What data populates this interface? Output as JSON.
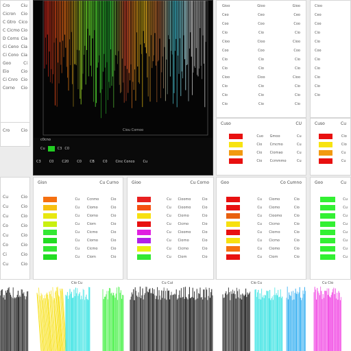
{
  "sidebar_left": {
    "rows": [
      {
        "label": "Cro",
        "value": "Ciu"
      },
      {
        "label": "Cicron",
        "value": "Cio"
      },
      {
        "label": "C Gtro",
        "value": "Cico"
      },
      {
        "label": "C Cicmo",
        "value": "Cio"
      },
      {
        "label": "D Corns",
        "value": "Cia"
      },
      {
        "label": "Ci Ceno",
        "value": "Cia"
      },
      {
        "label": "Ci Cono",
        "value": "Cia"
      },
      {
        "label": "Goo",
        "value": "Ci"
      },
      {
        "label": "Eio",
        "value": "Cio"
      },
      {
        "label": "Ci Cnro",
        "value": "Cio"
      },
      {
        "label": "Corno",
        "value": "Cio"
      }
    ],
    "footer": {
      "label": "Cro",
      "value": "Cio"
    }
  },
  "spectrum_viewer": {
    "status_text": "Ciou Comoo",
    "timestamp": "c0cno",
    "toolbar": [
      {
        "label": "C3"
      },
      {
        "label": "C0"
      },
      {
        "label": "C20"
      },
      {
        "label": "C0"
      },
      {
        "label": "CB"
      },
      {
        "label": "C0"
      },
      {
        "label": "Cinc Conco"
      },
      {
        "label": "Cu"
      }
    ],
    "selector_labels": [
      "Cu",
      "C3",
      "C0"
    ],
    "colors": {
      "green": "#33ff33",
      "accent": "#00ff66"
    }
  },
  "right_top_list": {
    "rows": [
      "Gioo",
      "Ceo",
      "Coo",
      "Cio",
      "Cioo",
      "Coo",
      "Cio",
      "Cio",
      "Cioo",
      "Cio",
      "Cio",
      "Cio"
    ]
  },
  "right_top_list2": {
    "rows": [
      "Cioo",
      "Ceo",
      "Coo",
      "Cio",
      "Cio",
      "Coo",
      "Cio",
      "Cio",
      "Cio",
      "Cio",
      "Cio"
    ]
  },
  "color_table_top_right": {
    "header": "Cuso",
    "header_right": "CU",
    "rows": [
      {
        "color": "#e81010",
        "code": "Cuo",
        "name": "Gmoo",
        "desc": "Cu"
      },
      {
        "color": "#f7e310",
        "code": "Cio",
        "name": "Cmcmo",
        "desc": "Cu"
      },
      {
        "color": "#f29a10",
        "code": "Cio",
        "name": "Ciomao",
        "desc": "Cu"
      },
      {
        "color": "#e81010",
        "code": "Cio",
        "name": "Ccmmmo",
        "desc": "Cu"
      }
    ]
  },
  "color_table_far_right": {
    "header": "Cuso",
    "header_right": "Cu",
    "rows": [
      {
        "color": "#e81010",
        "code": "Cio"
      },
      {
        "color": "#f7e310",
        "code": "Cio"
      },
      {
        "color": "#f29a10",
        "code": "Cu"
      },
      {
        "color": "#e81010",
        "code": "Cu"
      }
    ]
  },
  "mid_left_list": {
    "rows": [
      {
        "a": "Cu",
        "b": "Cio"
      },
      {
        "a": "Cu",
        "b": "Cio"
      },
      {
        "a": "Cu",
        "b": "Cio"
      },
      {
        "a": "Co",
        "b": "Cio"
      },
      {
        "a": "Cu",
        "b": "Cio"
      },
      {
        "a": "Co",
        "b": "Cio"
      },
      {
        "a": "Ci",
        "b": "Cio"
      },
      {
        "a": "Cu",
        "b": "Cio"
      }
    ]
  },
  "legend_panels": [
    {
      "title": "Gisn",
      "title_right": "Cu Curno",
      "rows": [
        {
          "color": "#f57010",
          "code": "Cu",
          "name": "Ccnmo",
          "val": "Cio"
        },
        {
          "color": "#f7c010",
          "code": "Cu",
          "name": "Ciomo",
          "val": "Cio"
        },
        {
          "color": "#e8e810",
          "code": "Cu",
          "name": "Ciorno",
          "val": "Cio"
        },
        {
          "color": "#c8f010",
          "code": "Cu",
          "name": "Ciorn",
          "val": "Cio"
        },
        {
          "color": "#33e833",
          "code": "Cu",
          "name": "Cicmo",
          "val": "Cio"
        },
        {
          "color": "#22dd22",
          "code": "Cu",
          "name": "Ciorno",
          "val": "Cio"
        },
        {
          "color": "#33e833",
          "code": "Cu",
          "name": "Cicmo",
          "val": "Cio"
        },
        {
          "color": "#22dd22",
          "code": "Cu",
          "name": "Ciorn",
          "val": "Cio"
        }
      ]
    },
    {
      "title": "Gioo",
      "title_right": "Cu Corno",
      "rows": [
        {
          "color": "#e82020",
          "code": "Cu",
          "name": "Cioomo",
          "val": "Cio"
        },
        {
          "color": "#f55010",
          "code": "Cu",
          "name": "Cioomo",
          "val": "Cio"
        },
        {
          "color": "#f7e010",
          "code": "Cu",
          "name": "Ciorno",
          "val": "Cio"
        },
        {
          "color": "#e81010",
          "code": "Cu",
          "name": "Cicmo",
          "val": "Cio"
        },
        {
          "color": "#e020e0",
          "code": "Cu",
          "name": "Cioomo",
          "val": "Cio"
        },
        {
          "color": "#b020e8",
          "code": "Cu",
          "name": "Ciorno",
          "val": "Cio"
        },
        {
          "color": "#e8f010",
          "code": "Cu",
          "name": "Cicmo",
          "val": "Cio"
        },
        {
          "color": "#33e833",
          "code": "Cu",
          "name": "Ciorn",
          "val": "Cio"
        }
      ]
    },
    {
      "title": "Goo",
      "title_right": "Co Cumno",
      "rows": [
        {
          "color": "#e81010",
          "code": "Cu",
          "name": "Ciomo",
          "val": "Cio"
        },
        {
          "color": "#e81010",
          "code": "Cu",
          "name": "Ciomo",
          "val": "Cio"
        },
        {
          "color": "#e86010",
          "code": "Cu",
          "name": "Cioomo",
          "val": "Cio"
        },
        {
          "color": "#f7e010",
          "code": "Cu",
          "name": "Cicmo",
          "val": "Cio"
        },
        {
          "color": "#e81010",
          "code": "Cu",
          "name": "Ciorno",
          "val": "Cio"
        },
        {
          "color": "#f7e010",
          "code": "Cu",
          "name": "Cicmo",
          "val": "Cio"
        },
        {
          "color": "#f57010",
          "code": "Cu",
          "name": "Ciomo",
          "val": "Cio"
        },
        {
          "color": "#e81010",
          "code": "Cu",
          "name": "Ciorn",
          "val": "Cio"
        }
      ]
    },
    {
      "title": "Goo",
      "title_right": "Cu",
      "rows": [
        {
          "color": "#33f033",
          "code": "Cu"
        },
        {
          "color": "#33f033",
          "code": "Cu"
        },
        {
          "color": "#33f033",
          "code": "Cu"
        },
        {
          "color": "#33f033",
          "code": "Cu"
        },
        {
          "color": "#33f033",
          "code": "Cu"
        },
        {
          "color": "#33f033",
          "code": "Cu"
        },
        {
          "color": "#33f033",
          "code": "Cu"
        },
        {
          "color": "#33f033",
          "code": "Cu"
        }
      ]
    }
  ],
  "spectra": {
    "captions": [
      "Cio Cu",
      "Cu Cui",
      "Cio Cu",
      "Cu Cio"
    ],
    "colors": [
      "#101010",
      "#f7e010",
      "#22e0e0",
      "#33f033",
      "#101010",
      "#101010",
      "#22e0e0",
      "#22a8f0",
      "#f030e0"
    ]
  }
}
